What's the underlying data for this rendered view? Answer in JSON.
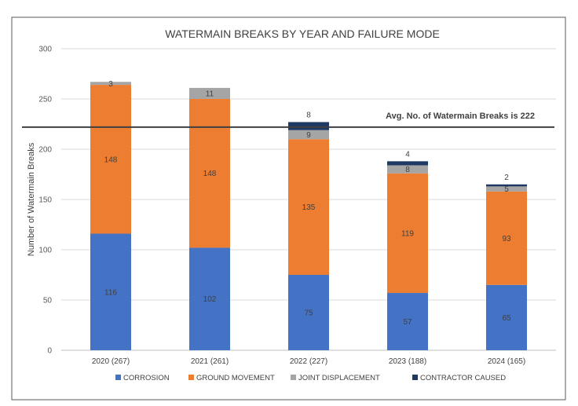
{
  "chart_data": {
    "type": "bar",
    "stacked": true,
    "title": "WATERMAIN BREAKS BY YEAR AND FAILURE MODE",
    "xlabel": "",
    "ylabel": "Number of Watermain Breaks",
    "ylim": [
      0,
      300
    ],
    "yticks": [
      0,
      50,
      100,
      150,
      200,
      250,
      300
    ],
    "grid": true,
    "legend_position": "bottom",
    "categories": [
      "2020 (267)",
      "2021 (261)",
      "2022 (227)",
      "2023 (188)",
      "2024 (165)"
    ],
    "series": [
      {
        "name": "CORROSION",
        "color": "#4472C4",
        "values": [
          116,
          102,
          75,
          57,
          65
        ]
      },
      {
        "name": "GROUND MOVEMENT",
        "color": "#ED7D31",
        "values": [
          148,
          148,
          135,
          119,
          93
        ]
      },
      {
        "name": "JOINT DISPLACEMENT",
        "color": "#A5A5A5",
        "values": [
          3,
          11,
          9,
          8,
          5
        ]
      },
      {
        "name": "CONTRACTOR CAUSED",
        "color": "#203864",
        "values": [
          0,
          0,
          8,
          4,
          2
        ]
      }
    ],
    "reference_line": {
      "value": 222,
      "label": "Avg. No. of Watermain Breaks is 222",
      "color": "#404040"
    }
  }
}
